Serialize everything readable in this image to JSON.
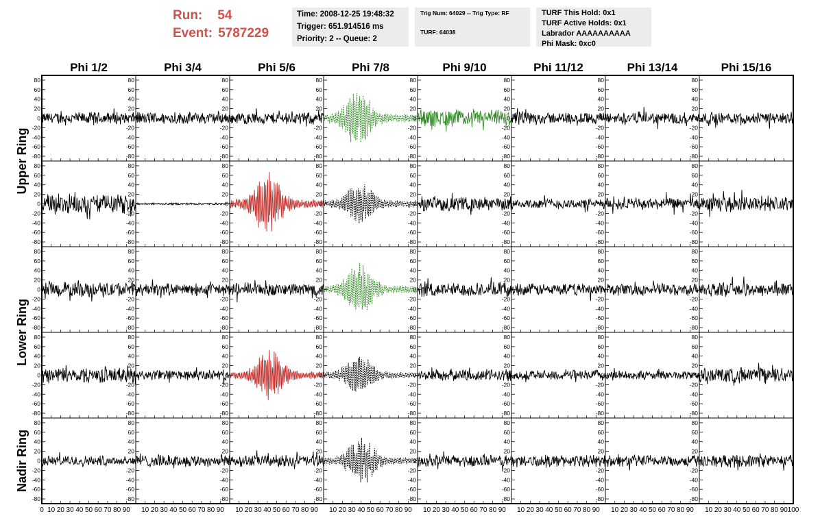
{
  "header": {
    "run_label": "Run:",
    "run_value": "54",
    "event_label": "Event:",
    "event_value": "5787229",
    "time_line": "Time: 2008-12-25 19:48:32",
    "trigger_line": "Trigger: 651.914516 ms",
    "priority_line": "Priority: 2 -- Queue: 2",
    "trig_num_line": "Trig Num: 64029 -- Trig Type: RF",
    "turf_line": "TURF: 64038",
    "turf_this_hold": "TURF This Hold: 0x1",
    "turf_active_holds": "TURF Active Holds: 0x1",
    "labrador": "Labrador AAAAAAAAAA",
    "phi_mask": "Phi Mask: 0xc0"
  },
  "columns": [
    "Phi 1/2",
    "Phi 3/4",
    "Phi 5/6",
    "Phi 7/8",
    "Phi 9/10",
    "Phi 11/12",
    "Phi 13/14",
    "Phi 15/16"
  ],
  "row_labels": [
    {
      "text": "Upper Ring",
      "spans_rows": [
        0,
        1
      ]
    },
    {
      "text": "Lower Ring",
      "spans_rows": [
        2,
        3
      ]
    },
    {
      "text": "Nadir Ring",
      "spans_rows": [
        4,
        4
      ]
    }
  ],
  "colors": {
    "default": "#000000",
    "green": "#2e8b22",
    "red": "#c0302c",
    "header_accent": "#d0504a",
    "pane_bg": "#ececec"
  },
  "chart_data": {
    "type": "line",
    "grid": false,
    "xlim": [
      0,
      100
    ],
    "ylim": [
      -90,
      90
    ],
    "x_ticks": [
      0,
      10,
      20,
      30,
      40,
      50,
      60,
      70,
      80,
      90,
      100
    ],
    "x_tick_labels_row": [
      "0",
      "10",
      "20",
      "30",
      "40",
      "50",
      "60",
      "70",
      "80",
      "90",
      "10",
      "20",
      "30",
      "40",
      "50",
      "60",
      "70",
      "80",
      "90",
      "10",
      "20",
      "30",
      "40",
      "50",
      "60",
      "70",
      "80",
      "90",
      "10",
      "20",
      "30",
      "40",
      "50",
      "60",
      "70",
      "80",
      "90",
      "10",
      "20",
      "30",
      "40",
      "50",
      "60",
      "70",
      "80",
      "90",
      "10",
      "20",
      "30",
      "40",
      "50",
      "60",
      "70",
      "80",
      "90",
      "10",
      "20",
      "30",
      "40",
      "50",
      "60",
      "70",
      "80",
      "90",
      "10",
      "20",
      "30",
      "40",
      "50",
      "60",
      "70",
      "80",
      "90",
      "100"
    ],
    "y_tick_labels": [
      "80",
      "60",
      "40",
      "20",
      "0",
      "-20",
      "-40",
      "-60",
      "-80"
    ],
    "y_tick_values": [
      80,
      60,
      40,
      20,
      0,
      -20,
      -40,
      -60,
      -80
    ],
    "rows": [
      [
        {
          "style": "noise",
          "amp": 14,
          "color": "default",
          "dashed": false
        },
        {
          "style": "noise",
          "amp": 14,
          "color": "default",
          "dashed": false
        },
        {
          "style": "noise",
          "amp": 14,
          "color": "default",
          "dashed": false
        },
        {
          "style": "pulse",
          "amp": 62,
          "center": 36,
          "color": "green",
          "dashed": true
        },
        {
          "style": "noise",
          "amp": 20,
          "color": "green",
          "dashed": false
        },
        {
          "style": "noise",
          "amp": 14,
          "color": "default",
          "dashed": false
        },
        {
          "style": "noise",
          "amp": 14,
          "color": "default",
          "dashed": false
        },
        {
          "style": "noise",
          "amp": 14,
          "color": "default",
          "dashed": false
        }
      ],
      [
        {
          "style": "noise",
          "amp": 22,
          "color": "default",
          "dashed": false
        },
        {
          "style": "flat",
          "amp": 2,
          "color": "default",
          "dashed": false
        },
        {
          "style": "pulse",
          "amp": 68,
          "center": 40,
          "color": "red",
          "dashed": false
        },
        {
          "style": "pulse",
          "amp": 50,
          "center": 38,
          "color": "default",
          "dashed": true
        },
        {
          "style": "noise",
          "amp": 16,
          "color": "default",
          "dashed": false
        },
        {
          "style": "noise",
          "amp": 12,
          "color": "default",
          "dashed": false
        },
        {
          "style": "noise",
          "amp": 14,
          "color": "default",
          "dashed": false
        },
        {
          "style": "noise",
          "amp": 18,
          "color": "default",
          "dashed": false
        }
      ],
      [
        {
          "style": "noise",
          "amp": 18,
          "color": "default",
          "dashed": false
        },
        {
          "style": "noise",
          "amp": 14,
          "color": "default",
          "dashed": false
        },
        {
          "style": "noise",
          "amp": 16,
          "color": "default",
          "dashed": false
        },
        {
          "style": "pulse",
          "amp": 58,
          "center": 38,
          "color": "green",
          "dashed": true
        },
        {
          "style": "noise",
          "amp": 16,
          "color": "default",
          "dashed": false
        },
        {
          "style": "noise",
          "amp": 14,
          "color": "default",
          "dashed": false
        },
        {
          "style": "noise",
          "amp": 14,
          "color": "default",
          "dashed": false
        },
        {
          "style": "noise",
          "amp": 16,
          "color": "default",
          "dashed": false
        }
      ],
      [
        {
          "style": "noise",
          "amp": 18,
          "color": "default",
          "dashed": false
        },
        {
          "style": "noise",
          "amp": 12,
          "color": "default",
          "dashed": false
        },
        {
          "style": "pulse",
          "amp": 55,
          "center": 42,
          "color": "red",
          "dashed": false
        },
        {
          "style": "pulse",
          "amp": 45,
          "center": 38,
          "color": "default",
          "dashed": true
        },
        {
          "style": "noise",
          "amp": 14,
          "color": "default",
          "dashed": false
        },
        {
          "style": "noise",
          "amp": 12,
          "color": "default",
          "dashed": false
        },
        {
          "style": "noise",
          "amp": 10,
          "color": "default",
          "dashed": false
        },
        {
          "style": "noise",
          "amp": 18,
          "color": "default",
          "dashed": false
        }
      ],
      [
        {
          "style": "noise",
          "amp": 12,
          "color": "default",
          "dashed": false
        },
        {
          "style": "noise",
          "amp": 14,
          "color": "default",
          "dashed": false
        },
        {
          "style": "noise",
          "amp": 14,
          "color": "default",
          "dashed": false
        },
        {
          "style": "pulse",
          "amp": 50,
          "center": 40,
          "color": "default",
          "dashed": true
        },
        {
          "style": "noise",
          "amp": 14,
          "color": "default",
          "dashed": false
        },
        {
          "style": "noise",
          "amp": 14,
          "color": "default",
          "dashed": false
        },
        {
          "style": "noise",
          "amp": 14,
          "color": "default",
          "dashed": false
        },
        {
          "style": "noise",
          "amp": 14,
          "color": "default",
          "dashed": false
        }
      ]
    ]
  }
}
